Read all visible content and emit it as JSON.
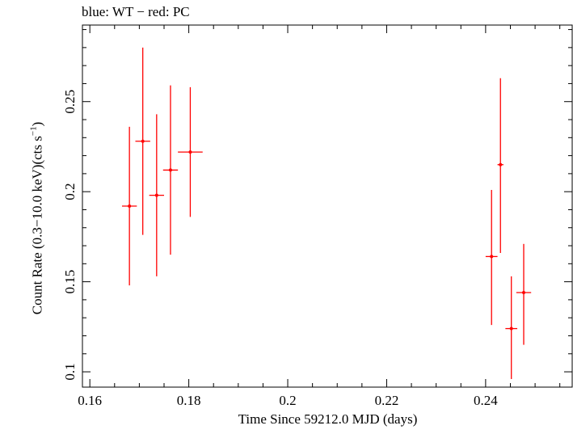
{
  "chart_data": {
    "type": "scatter",
    "title": "blue: WT − red: PC",
    "xlabel": "Time Since 59212.0 MJD (days)",
    "ylabel": {
      "main": "Count Rate (0.3−10.0 keV)(cts s",
      "exp": "−1",
      "close": ")"
    },
    "xlim": [
      0.1585,
      0.2575
    ],
    "ylim": [
      0.0915,
      0.2925
    ],
    "x_ticks": [
      0.16,
      0.18,
      0.2,
      0.22,
      0.24
    ],
    "x_tick_labels": [
      "0.16",
      "0.18",
      "0.2",
      "0.22",
      "0.24"
    ],
    "y_ticks": [
      0.1,
      0.15,
      0.2,
      0.25
    ],
    "y_tick_labels": [
      "0.1",
      "0.15",
      "0.2",
      "0.25"
    ],
    "series": [
      {
        "name": "PC",
        "color": "#ff0000",
        "points": [
          {
            "x": 0.168,
            "y": 0.192,
            "xerr": 0.0015,
            "ylo": 0.148,
            "yhi": 0.236
          },
          {
            "x": 0.1707,
            "y": 0.228,
            "xerr": 0.0015,
            "ylo": 0.176,
            "yhi": 0.28
          },
          {
            "x": 0.1735,
            "y": 0.198,
            "xerr": 0.0015,
            "ylo": 0.153,
            "yhi": 0.243
          },
          {
            "x": 0.1763,
            "y": 0.212,
            "xerr": 0.0015,
            "ylo": 0.165,
            "yhi": 0.259
          },
          {
            "x": 0.1803,
            "y": 0.222,
            "xerr": 0.0025,
            "ylo": 0.186,
            "yhi": 0.258
          },
          {
            "x": 0.2412,
            "y": 0.164,
            "xerr": 0.0012,
            "ylo": 0.126,
            "yhi": 0.201
          },
          {
            "x": 0.243,
            "y": 0.215,
            "xerr": 0.0006,
            "ylo": 0.166,
            "yhi": 0.263
          },
          {
            "x": 0.2452,
            "y": 0.124,
            "xerr": 0.0012,
            "ylo": 0.096,
            "yhi": 0.153
          },
          {
            "x": 0.2477,
            "y": 0.144,
            "xerr": 0.0015,
            "ylo": 0.115,
            "yhi": 0.171
          }
        ]
      }
    ]
  }
}
